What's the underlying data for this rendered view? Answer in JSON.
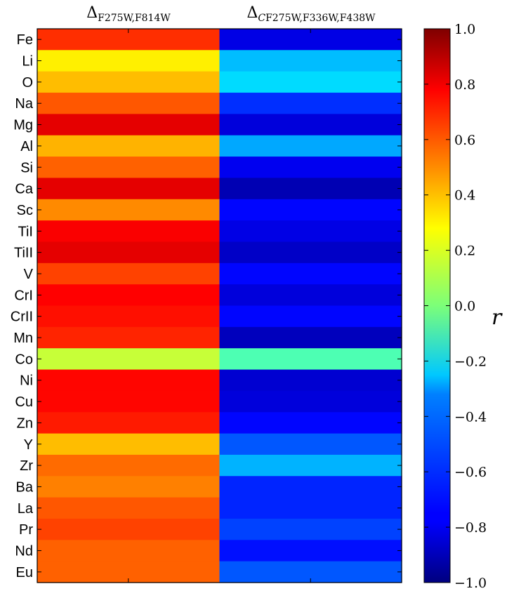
{
  "chart_data": {
    "type": "heatmap",
    "columns": [
      {
        "symbol": "Δ",
        "italic_prefix": "",
        "subscript": "F275W,F814W"
      },
      {
        "symbol": "Δ",
        "italic_prefix": "C",
        "subscript": "F275W,F336W,F438W"
      }
    ],
    "rows": [
      "Fe",
      "Li",
      "O",
      "Na",
      "Mg",
      "Al",
      "Si",
      "Ca",
      "Sc",
      "TiI",
      "TiII",
      "V",
      "CrI",
      "CrII",
      "Mn",
      "Co",
      "Ni",
      "Cu",
      "Zn",
      "Y",
      "Zr",
      "Ba",
      "La",
      "Pr",
      "Nd",
      "Eu"
    ],
    "values": [
      [
        0.66,
        -0.8
      ],
      [
        0.28,
        -0.38
      ],
      [
        0.38,
        -0.32
      ],
      [
        0.58,
        -0.66
      ],
      [
        0.8,
        -0.82
      ],
      [
        0.4,
        -0.42
      ],
      [
        0.56,
        -0.78
      ],
      [
        0.8,
        -0.9
      ],
      [
        0.48,
        -0.74
      ],
      [
        0.76,
        -0.8
      ],
      [
        0.8,
        -0.86
      ],
      [
        0.62,
        -0.74
      ],
      [
        0.75,
        -0.82
      ],
      [
        0.72,
        -0.74
      ],
      [
        0.68,
        -0.88
      ],
      [
        0.14,
        -0.1
      ],
      [
        0.74,
        -0.84
      ],
      [
        0.74,
        -0.82
      ],
      [
        0.7,
        -0.74
      ],
      [
        0.38,
        -0.58
      ],
      [
        0.54,
        -0.4
      ],
      [
        0.5,
        -0.68
      ],
      [
        0.58,
        -0.68
      ],
      [
        0.62,
        -0.62
      ],
      [
        0.56,
        -0.72
      ],
      [
        0.56,
        -0.58
      ]
    ],
    "colorbar": {
      "label": "r",
      "range": [
        -1.0,
        1.0
      ],
      "ticks": [
        "−1.0",
        "−0.8",
        "−0.6",
        "−0.4",
        "−0.2",
        "0.0",
        "0.2",
        "0.4",
        "0.6",
        "0.8",
        "1.0"
      ],
      "colormap": "jet"
    }
  }
}
